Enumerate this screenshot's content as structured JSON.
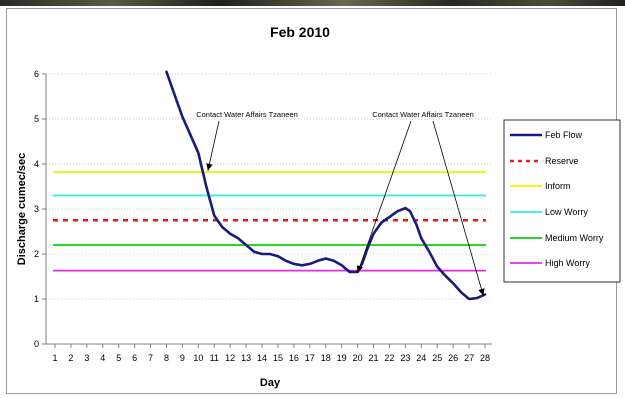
{
  "chart_data": {
    "type": "line",
    "title": "Feb 2010",
    "xlabel": "Day",
    "ylabel": "Discharge cumec/sec",
    "x": [
      1,
      2,
      3,
      4,
      5,
      6,
      7,
      8,
      9,
      10,
      11,
      12,
      13,
      14,
      15,
      16,
      17,
      18,
      19,
      20,
      21,
      22,
      23,
      24,
      25,
      26,
      27,
      28
    ],
    "xlim": [
      1,
      28
    ],
    "ylim": [
      0,
      6
    ],
    "yticks": [
      0,
      1,
      2,
      3,
      4,
      5,
      6
    ],
    "grid": "horizontal dotted",
    "legend_position": "right",
    "series": [
      {
        "name": "Feb Flow",
        "color": "#1a1a7a",
        "style": "solid-thick",
        "x": [
          8,
          8.5,
          9,
          9.5,
          10,
          10.5,
          11,
          11.5,
          12,
          12.5,
          13,
          13.5,
          14,
          14.5,
          15,
          15.5,
          16,
          16.5,
          17,
          17.5,
          18,
          18.5,
          19,
          19.5,
          20,
          20.3,
          20.6,
          21,
          21.5,
          22,
          22.5,
          23,
          23.3,
          23.7,
          24,
          24.5,
          25,
          25.5,
          26,
          26.5,
          27,
          27.5,
          28
        ],
        "values": [
          6.05,
          5.55,
          5.05,
          4.65,
          4.25,
          3.5,
          2.85,
          2.6,
          2.45,
          2.35,
          2.2,
          2.05,
          2.0,
          2.0,
          1.95,
          1.85,
          1.78,
          1.75,
          1.78,
          1.85,
          1.9,
          1.85,
          1.75,
          1.6,
          1.6,
          1.8,
          2.1,
          2.45,
          2.7,
          2.82,
          2.95,
          3.02,
          2.95,
          2.65,
          2.35,
          2.05,
          1.72,
          1.52,
          1.35,
          1.15,
          1.0,
          1.02,
          1.1
        ]
      },
      {
        "name": "Reserve",
        "color": "#e21b1b",
        "style": "dashed",
        "value": 2.75
      },
      {
        "name": "Inform",
        "color": "#f2f200",
        "style": "solid",
        "value": 3.82
      },
      {
        "name": "Low Worry",
        "color": "#33e6f0",
        "style": "solid",
        "value": 3.3
      },
      {
        "name": "Medium Worry",
        "color": "#11cc11",
        "style": "solid",
        "value": 2.2
      },
      {
        "name": "High Worry",
        "color": "#e22ee2",
        "style": "solid",
        "value": 1.63
      }
    ],
    "annotations": [
      {
        "text": "Contact Water Affairs Tzaneen",
        "anchor": "top",
        "points_to": {
          "x": 10.6,
          "y": 3.85
        }
      },
      {
        "text": "Contact Water Affairs Tzaneen",
        "anchor": "top",
        "points_to": [
          {
            "x": 20.0,
            "y": 1.58
          },
          {
            "x": 27.9,
            "y": 1.07
          }
        ]
      }
    ]
  }
}
